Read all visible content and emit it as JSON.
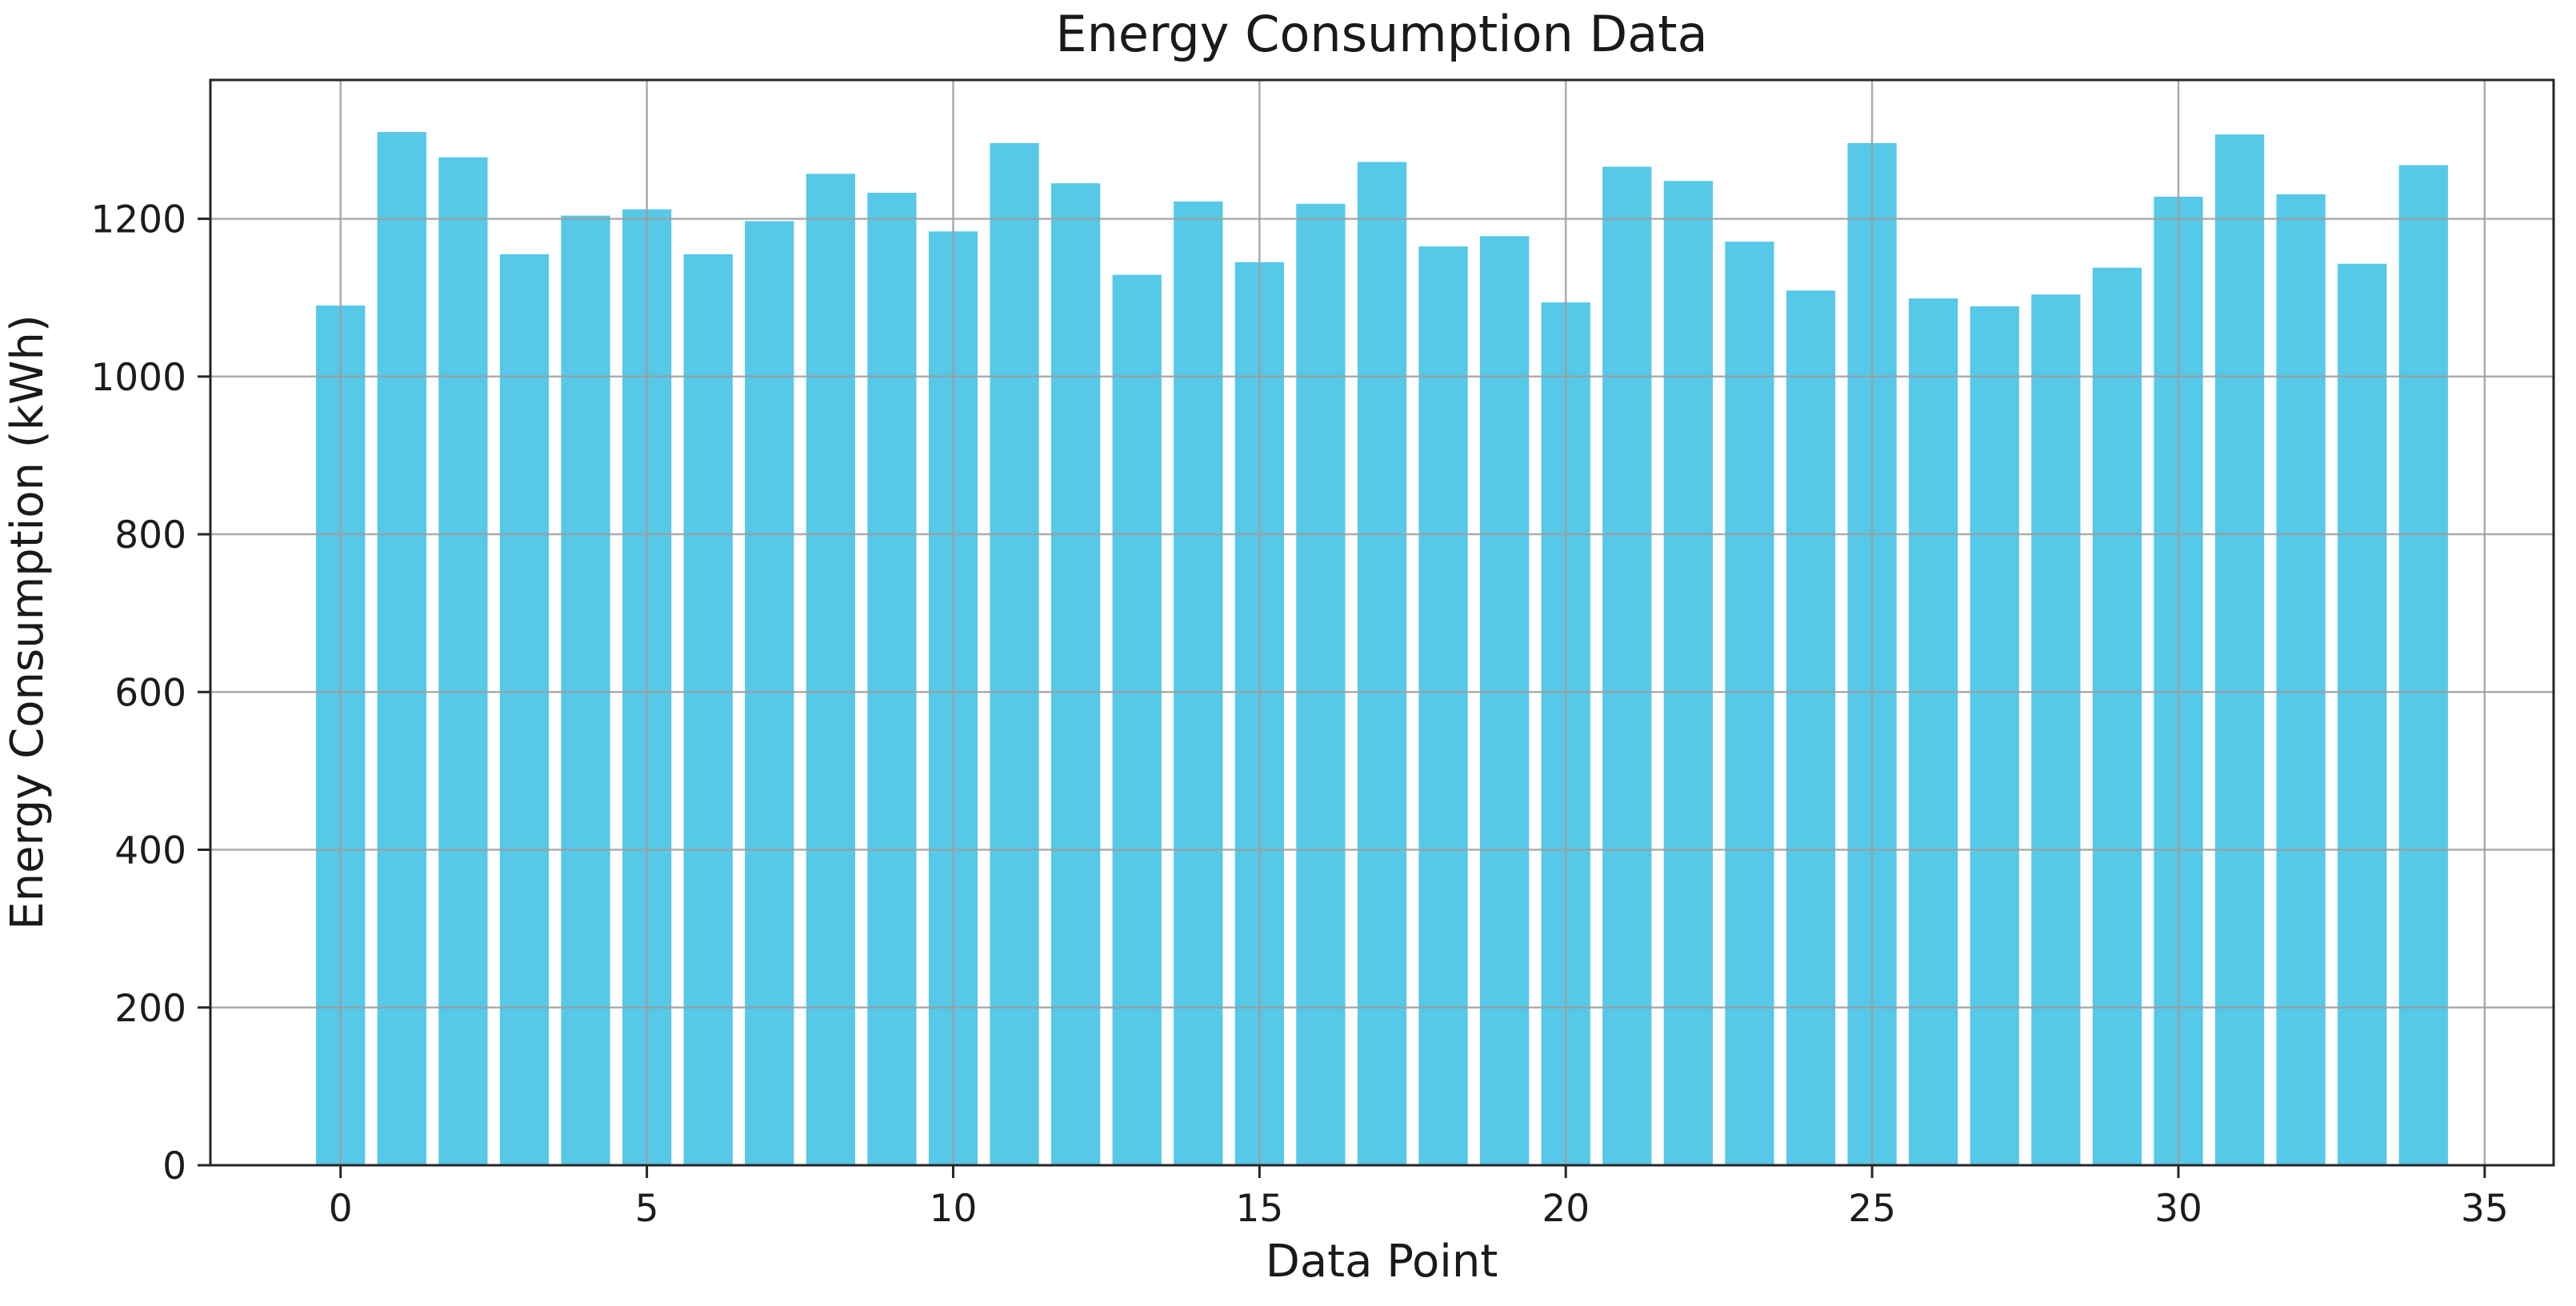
{
  "chart_data": {
    "type": "bar",
    "title": "Energy Consumption Data",
    "xlabel": "Data Point",
    "ylabel": "Energy Consumption (kWh)",
    "x": [
      0,
      1,
      2,
      3,
      4,
      5,
      6,
      7,
      8,
      9,
      10,
      11,
      12,
      13,
      14,
      15,
      16,
      17,
      18,
      19,
      20,
      21,
      22,
      23,
      24,
      25,
      26,
      27,
      28,
      29,
      30,
      31,
      32,
      33,
      34
    ],
    "values": [
      1090,
      1310,
      1278,
      1155,
      1204,
      1212,
      1155,
      1197,
      1257,
      1233,
      1184,
      1296,
      1245,
      1129,
      1222,
      1145,
      1219,
      1272,
      1165,
      1178,
      1094,
      1266,
      1248,
      1171,
      1109,
      1296,
      1099,
      1089,
      1104,
      1138,
      1228,
      1307,
      1231,
      1143,
      1268
    ],
    "xticks": [
      0,
      5,
      10,
      15,
      20,
      25,
      30,
      35
    ],
    "yticks": [
      0,
      200,
      400,
      600,
      800,
      1000,
      1200
    ],
    "xlim": [
      -2.125,
      36.125
    ],
    "ylim": [
      0,
      1376
    ],
    "bar_width": 0.8,
    "grid": true,
    "grid_over_bars": true,
    "legend": null,
    "colors": {
      "bar": "#56c8e8",
      "grid": "#9e9e9e",
      "spine": "#262626",
      "text": "#1a1a1a"
    }
  }
}
